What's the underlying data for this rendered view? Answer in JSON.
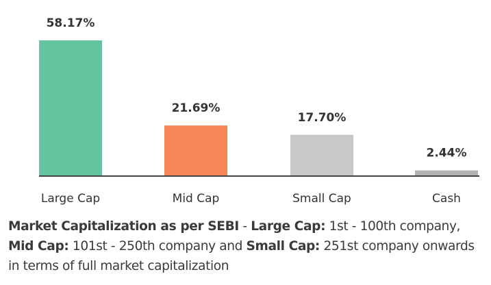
{
  "chart_data": {
    "type": "bar",
    "title": "",
    "xlabel": "",
    "ylabel": "",
    "categories": [
      "Large Cap",
      "Mid Cap",
      "Small Cap",
      "Cash"
    ],
    "values": [
      58.17,
      21.69,
      17.7,
      2.44
    ],
    "data_labels": [
      "58.17%",
      "21.69%",
      "17.70%",
      "2.44%"
    ],
    "colors": [
      "#63c49e",
      "#f8845a",
      "#c8c8c8",
      "#b4b4b4"
    ],
    "ylim": [
      0,
      58.17
    ],
    "grid": false,
    "legend": "none",
    "axis_color": "#444444"
  },
  "caption": {
    "parts": [
      {
        "text": "Market Capitalization as per SEBI",
        "bold": true
      },
      {
        "text": " - ",
        "bold": false
      },
      {
        "text": "Large Cap:",
        "bold": true
      },
      {
        "text": " 1st - 100th company, ",
        "bold": false
      },
      {
        "text": "Mid Cap:",
        "bold": true
      },
      {
        "text": " 101st - 250th company and ",
        "bold": false
      },
      {
        "text": "Small Cap:",
        "bold": true
      },
      {
        "text": " 251st company onwards in terms of full market capitalization",
        "bold": false
      }
    ]
  }
}
